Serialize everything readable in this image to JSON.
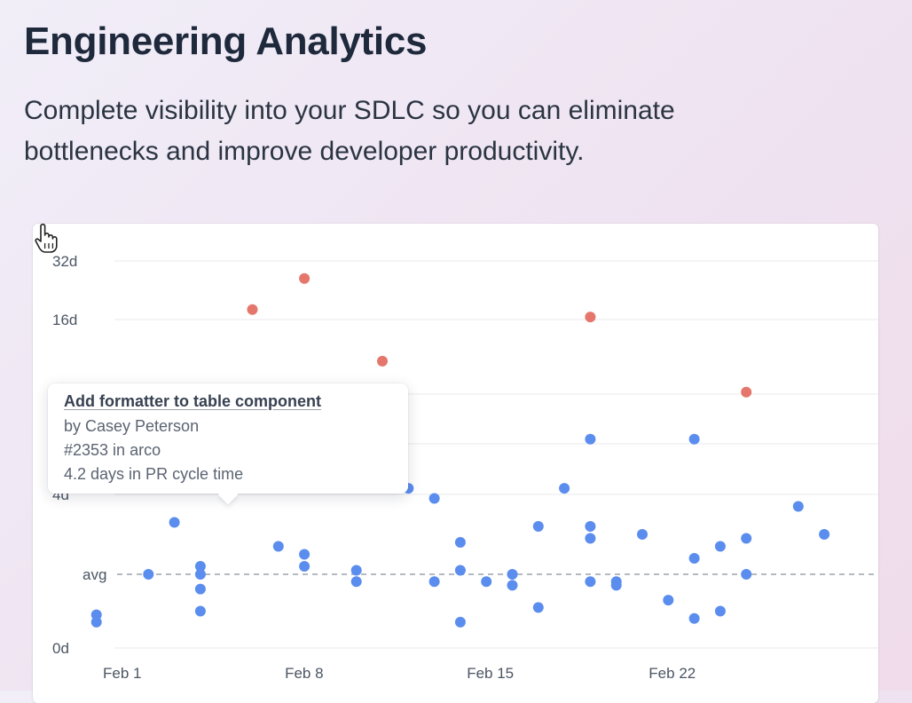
{
  "header": {
    "title": "Engineering Analytics",
    "subtitle": "Complete visibility into your SDLC so you can eliminate bottlenecks and improve developer productivity."
  },
  "tooltip": {
    "title": "Add formatter to table component",
    "author": "by Casey Peterson",
    "pr": "#2353 in arco",
    "metric": "4.2 days in PR cycle time"
  },
  "colors": {
    "normal": "#5b8def",
    "outlier": "#e5766b",
    "grid": "#e8eaee",
    "avg_line": "#9ca3af"
  },
  "chart_data": {
    "type": "scatter",
    "x_axis": {
      "ticks": [
        "Feb 1",
        "Feb 8",
        "Feb 15",
        "Feb 22"
      ]
    },
    "y_axis": {
      "ticks": [
        "32d",
        "16d",
        "4d",
        "avg",
        "0d"
      ]
    },
    "grid": true,
    "highlighted_point": {
      "date": "Feb 5",
      "value_days": 4.2,
      "icon": "hand-pointer-icon"
    },
    "series": [
      {
        "key": "normal",
        "points": [
          {
            "date": "Jan 31",
            "days": 0.9
          },
          {
            "date": "Jan 31",
            "days": 0.7
          },
          {
            "date": "Feb 2",
            "days": 2.0
          },
          {
            "date": "Feb 3",
            "days": 3.3
          },
          {
            "date": "Feb 4",
            "days": 2.2
          },
          {
            "date": "Feb 4",
            "days": 1.0
          },
          {
            "date": "Feb 4",
            "days": 2.0
          },
          {
            "date": "Feb 4",
            "days": 1.6
          },
          {
            "date": "Feb 7",
            "days": 2.7
          },
          {
            "date": "Feb 8",
            "days": 2.2
          },
          {
            "date": "Feb 8",
            "days": 2.5
          },
          {
            "date": "Feb 10",
            "days": 1.8
          },
          {
            "date": "Feb 10",
            "days": 2.1
          },
          {
            "date": "Feb 12",
            "days": 4.2
          },
          {
            "date": "Feb 13",
            "days": 1.8
          },
          {
            "date": "Feb 13",
            "days": 3.9
          },
          {
            "date": "Feb 14",
            "days": 2.1
          },
          {
            "date": "Feb 14",
            "days": 0.7
          },
          {
            "date": "Feb 14",
            "days": 2.8
          },
          {
            "date": "Feb 15",
            "days": 1.8
          },
          {
            "date": "Feb 16",
            "days": 1.7
          },
          {
            "date": "Feb 16",
            "days": 2.0
          },
          {
            "date": "Feb 17",
            "days": 3.2
          },
          {
            "date": "Feb 17",
            "days": 1.1
          },
          {
            "date": "Feb 18",
            "days": 4.2
          },
          {
            "date": "Feb 19",
            "days": 1.8
          },
          {
            "date": "Feb 19",
            "days": 2.9
          },
          {
            "date": "Feb 19",
            "days": 3.2
          },
          {
            "date": "Feb 19",
            "days": 6.2
          },
          {
            "date": "Feb 20",
            "days": 1.8
          },
          {
            "date": "Feb 20",
            "days": 1.7
          },
          {
            "date": "Feb 21",
            "days": 3.0
          },
          {
            "date": "Feb 22",
            "days": 1.3
          },
          {
            "date": "Feb 23",
            "days": 2.4
          },
          {
            "date": "Feb 23",
            "days": 0.8
          },
          {
            "date": "Feb 23",
            "days": 6.2
          },
          {
            "date": "Feb 24",
            "days": 2.7
          },
          {
            "date": "Feb 24",
            "days": 1.0
          },
          {
            "date": "Feb 25",
            "days": 2.0
          },
          {
            "date": "Feb 25",
            "days": 2.9
          },
          {
            "date": "Feb 27",
            "days": 3.7
          },
          {
            "date": "Feb 28",
            "days": 3.0
          }
        ]
      },
      {
        "key": "outlier",
        "points": [
          {
            "date": "Feb 6",
            "days": 18.0
          },
          {
            "date": "Feb 8",
            "days": 26.0
          },
          {
            "date": "Feb 11",
            "days": 11.5
          },
          {
            "date": "Feb 19",
            "days": 16.5
          },
          {
            "date": "Feb 25",
            "days": 9.0
          }
        ]
      }
    ]
  }
}
